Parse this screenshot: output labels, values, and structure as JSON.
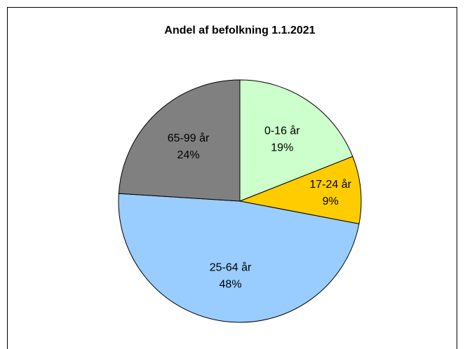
{
  "chart_data": {
    "type": "pie",
    "title": "Andel af befolkning 1.1.2021",
    "categories": [
      "0-16 år",
      "17-24 år",
      "25-64 år",
      "65-99 år"
    ],
    "values": [
      19,
      9,
      48,
      24
    ],
    "value_labels": [
      "19%",
      "9%",
      "48%",
      "24%"
    ],
    "colors": [
      "#ccffcc",
      "#ffcc00",
      "#99ccff",
      "#808080"
    ]
  }
}
